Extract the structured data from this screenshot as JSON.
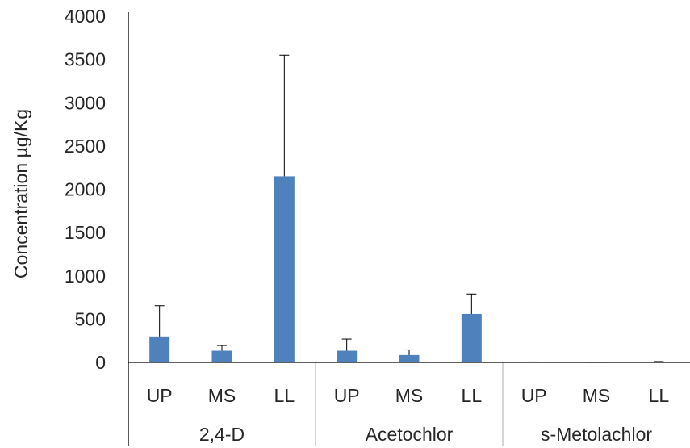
{
  "chart_data": {
    "type": "bar",
    "title": "",
    "ylabel": "Concentration µg/Kg",
    "xlabel": "",
    "ylim": [
      0,
      4000
    ],
    "yticks": [
      0,
      500,
      1000,
      1500,
      2000,
      2500,
      3000,
      3500,
      4000
    ],
    "groups": [
      {
        "name": "2,4-D",
        "categories": [
          "UP",
          "MS",
          "LL"
        ],
        "values": [
          300,
          135,
          2150
        ],
        "error_upper": [
          655,
          195,
          3550
        ]
      },
      {
        "name": "Acetochlor",
        "categories": [
          "UP",
          "MS",
          "LL"
        ],
        "values": [
          135,
          85,
          560
        ],
        "error_upper": [
          270,
          145,
          790
        ]
      },
      {
        "name": "s-Metolachlor",
        "categories": [
          "UP",
          "MS",
          "LL"
        ],
        "values": [
          3,
          2,
          5
        ],
        "error_upper": [
          5,
          4,
          10
        ]
      }
    ],
    "bar_color": "#4f81bd",
    "grid": false,
    "legend": "none"
  }
}
